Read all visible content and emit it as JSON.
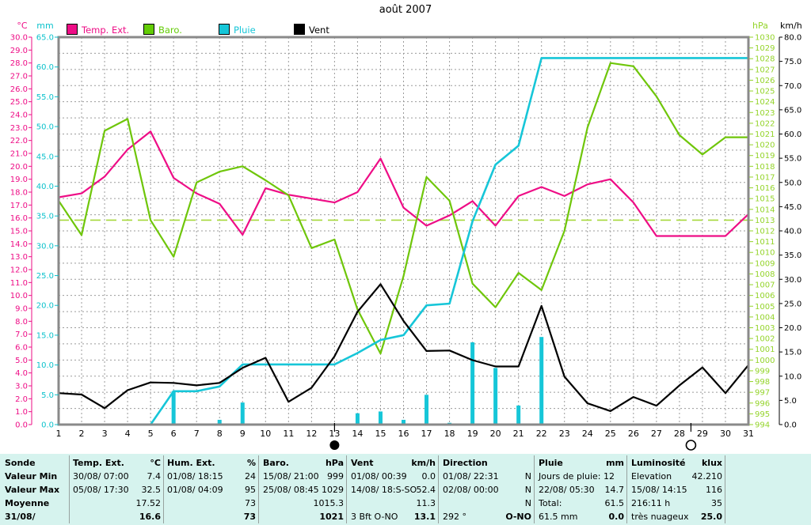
{
  "title": "août 2007",
  "legend": [
    {
      "label": "Temp. Ext.",
      "color": "#ee0d86"
    },
    {
      "label": "Baro.",
      "color": "#63cc06"
    },
    {
      "label": "Pluie",
      "color": "#16c6d8"
    },
    {
      "label": "Vent",
      "color": "#000000"
    }
  ],
  "axes": {
    "temp": {
      "label": "°C",
      "color": "#ee0d86",
      "min": 0,
      "max": 30,
      "step": 1,
      "decimals": 1
    },
    "rain": {
      "label": "mm",
      "color": "#0cc2cc",
      "min": 0,
      "max": 65,
      "step": 5,
      "decimals": 1
    },
    "baro": {
      "label": "hPa",
      "color": "#94d42a",
      "min": 994,
      "max": 1030,
      "step": 1,
      "decimals": 0
    },
    "wind": {
      "label": "km/h",
      "color": "#000000",
      "min": 0,
      "max": 80,
      "step": 5,
      "decimals": 1
    }
  },
  "chart_data": {
    "type": "line",
    "x_label": "jour",
    "days": [
      1,
      2,
      3,
      4,
      5,
      6,
      7,
      8,
      9,
      10,
      11,
      12,
      13,
      14,
      15,
      16,
      17,
      18,
      19,
      20,
      21,
      22,
      23,
      24,
      25,
      26,
      27,
      28,
      29,
      30,
      31
    ],
    "series": [
      {
        "name": "Temp. Ext.",
        "axis": "temp",
        "color": "#ee0d86",
        "width": 2.2,
        "values": [
          17.6,
          17.9,
          19.2,
          21.3,
          22.7,
          19.1,
          17.9,
          17.1,
          14.7,
          18.3,
          17.8,
          17.5,
          17.2,
          18.0,
          20.6,
          16.8,
          15.4,
          16.2,
          17.3,
          15.4,
          17.7,
          18.4,
          17.7,
          18.6,
          19.0,
          17.2,
          14.6,
          14.6,
          14.6,
          14.6,
          16.3
        ]
      },
      {
        "name": "Baro.",
        "axis": "baro",
        "color": "#6fc60a",
        "width": 2.2,
        "values": [
          1014.8,
          1011.6,
          1021.3,
          1022.4,
          1013.0,
          1009.6,
          1016.5,
          1017.5,
          1018.0,
          1016.7,
          1015.3,
          1010.4,
          1011.2,
          1004.7,
          1000.6,
          1007.8,
          1017.0,
          1014.8,
          1007.1,
          1004.9,
          1008.1,
          1006.5,
          1012.0,
          1021.6,
          1027.6,
          1027.3,
          1024.5,
          1020.9,
          1019.1,
          1020.7,
          1020.7
        ]
      },
      {
        "name": "Pluie",
        "axis": "rain",
        "color": "#16c6d8",
        "width": 2.6,
        "values": [
          0,
          0,
          0,
          0,
          0,
          5.6,
          5.6,
          6.4,
          10.1,
          10.1,
          10.1,
          10.1,
          10.1,
          12.0,
          14.2,
          15.0,
          20.0,
          20.3,
          34.1,
          43.6,
          46.8,
          61.5,
          61.5,
          61.5,
          61.5,
          61.5,
          61.5,
          61.5,
          61.5,
          61.5,
          61.5
        ]
      },
      {
        "name": "Vent",
        "axis": "wind",
        "color": "#000000",
        "width": 2.2,
        "values": [
          6.5,
          6.2,
          3.4,
          7.1,
          8.7,
          8.6,
          8.1,
          8.6,
          11.7,
          13.8,
          4.7,
          7.6,
          14.1,
          23.3,
          29.0,
          21.4,
          15.2,
          15.3,
          13.3,
          12.0,
          12.0,
          24.5,
          9.9,
          4.4,
          2.8,
          5.7,
          3.9,
          8.1,
          11.8,
          6.5,
          12.3
        ]
      }
    ],
    "rain_bars": {
      "axis": "rain",
      "color": "#16c6d8",
      "days": [
        6,
        8,
        9,
        14,
        15,
        16,
        17,
        18,
        19,
        20,
        21,
        22
      ],
      "values": [
        5.6,
        0.8,
        3.7,
        1.9,
        2.2,
        0.8,
        5.0,
        0.3,
        13.8,
        9.5,
        3.2,
        14.7
      ]
    },
    "reference_line": {
      "axis": "baro",
      "value": 1013,
      "color": "#a6d83c"
    },
    "moon_markers": [
      {
        "day": 13,
        "phase": "new"
      },
      {
        "day": 28.5,
        "phase": "full"
      }
    ]
  },
  "table": {
    "row_labels": [
      "Sonde",
      "Valeur Min",
      "Valeur Max",
      "Moyenne",
      "31/08/"
    ],
    "columns": [
      {
        "name": "Temp. Ext.",
        "unit": "°C",
        "rows": [
          [
            "30/08/ 07:00",
            "7.4"
          ],
          [
            "05/08/ 17:30",
            "32.5"
          ],
          [
            "",
            "17.52"
          ],
          [
            "",
            "16.6"
          ]
        ]
      },
      {
        "name": "Hum. Ext.",
        "unit": "%",
        "rows": [
          [
            "01/08/ 18:15",
            "24"
          ],
          [
            "01/08/ 04:09",
            "95"
          ],
          [
            "",
            "73"
          ],
          [
            "",
            "73"
          ]
        ]
      },
      {
        "name": "Baro.",
        "unit": "hPa",
        "rows": [
          [
            "15/08/ 21:00",
            "999"
          ],
          [
            "25/08/ 08:45",
            "1029"
          ],
          [
            "",
            "1015.3"
          ],
          [
            "",
            "1021"
          ]
        ]
      },
      {
        "name": "Vent",
        "unit": "km/h",
        "rows": [
          [
            "01/08/ 00:39",
            "0.0"
          ],
          [
            "14/08/ 18:S-SO",
            "52.4"
          ],
          [
            "",
            "11.3"
          ],
          [
            "3 Bft O-NO",
            "13.1"
          ]
        ]
      },
      {
        "name": "Direction",
        "unit": "",
        "rows": [
          [
            "01/08/ 22:31",
            "N"
          ],
          [
            "02/08/ 00:00",
            "N"
          ],
          [
            "",
            "N"
          ],
          [
            "292 °",
            "O-NO"
          ]
        ]
      },
      {
        "name": "Pluie",
        "unit": "mm",
        "rows": [
          [
            "Jours de pluie: 12",
            ""
          ],
          [
            "22/08/ 05:30",
            "14.7"
          ],
          [
            "Total:",
            "61.5"
          ],
          [
            "61.5 mm",
            "0.0"
          ]
        ]
      },
      {
        "name": "Luminosité",
        "unit": "klux",
        "rows": [
          [
            "Elevation",
            "42.210"
          ],
          [
            "15/08/ 14:15",
            "116"
          ],
          [
            "216:11 h",
            "35"
          ],
          [
            "très nuageux",
            "25.0"
          ]
        ]
      }
    ]
  }
}
